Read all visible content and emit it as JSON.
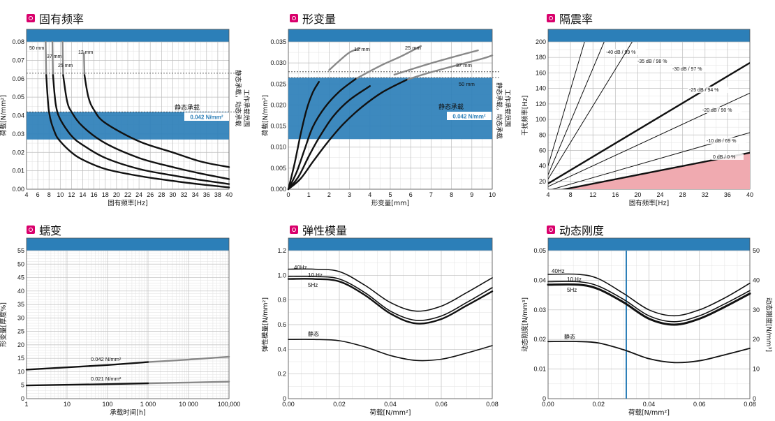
{
  "colors": {
    "band": "#2c7fb8",
    "accent": "#d9006c",
    "iso": "#f0aab0",
    "curve": "#111111",
    "faded": "#888888"
  },
  "chart_data": [
    {
      "id": "natfreq",
      "type": "line",
      "title": "固有频率",
      "xlabel": "固有频率[Hz]",
      "ylabel": "荷载[N/mm²]",
      "xlim": [
        4,
        40
      ],
      "ylim": [
        0,
        0.08
      ],
      "xticks": [
        4,
        6,
        8,
        10,
        12,
        14,
        16,
        18,
        20,
        22,
        24,
        26,
        28,
        30,
        32,
        34,
        36,
        38,
        40
      ],
      "yticks": [
        0,
        0.01,
        0.02,
        0.03,
        0.04,
        0.05,
        0.06,
        0.07,
        0.08
      ],
      "ytick_labels": [
        "0.00",
        "0.01",
        "0.02",
        "0.03",
        "0.04",
        "0.05",
        "0.06",
        "0.07",
        "0.08"
      ],
      "band": [
        0.027,
        0.042
      ],
      "band_right_label": "工作承载范围",
      "static_load_label": "静态承载",
      "static_load_value": "0.042 N/mm²",
      "dynamic_load_label": "静态承载，动态承载",
      "dynamic_load_level": 0.063,
      "series": [
        {
          "name": "50 mm",
          "points": [
            [
              7.4,
              0.08
            ],
            [
              7.5,
              0.062
            ],
            [
              8,
              0.042
            ],
            [
              9,
              0.031
            ],
            [
              10,
              0.026
            ],
            [
              12,
              0.02
            ],
            [
              14,
              0.016
            ],
            [
              18,
              0.011
            ],
            [
              24,
              0.0072
            ],
            [
              30,
              0.0045
            ],
            [
              35,
              0.0026
            ],
            [
              40,
              0.001
            ]
          ]
        },
        {
          "name": "37 mm",
          "points": [
            [
              8.6,
              0.08
            ],
            [
              8.7,
              0.062
            ],
            [
              9.2,
              0.046
            ],
            [
              10,
              0.038
            ],
            [
              12,
              0.029
            ],
            [
              14,
              0.024
            ],
            [
              18,
              0.017
            ],
            [
              24,
              0.011
            ],
            [
              30,
              0.0075
            ],
            [
              35,
              0.005
            ],
            [
              40,
              0.0028
            ]
          ]
        },
        {
          "name": "25 mm",
          "points": [
            [
              10.4,
              0.08
            ],
            [
              10.5,
              0.062
            ],
            [
              11.2,
              0.048
            ],
            [
              12,
              0.042
            ],
            [
              14,
              0.034
            ],
            [
              18,
              0.025
            ],
            [
              24,
              0.017
            ],
            [
              30,
              0.012
            ],
            [
              35,
              0.0085
            ],
            [
              40,
              0.0055
            ]
          ]
        },
        {
          "name": "12 mm",
          "points": [
            [
              14.2,
              0.074
            ],
            [
              14.3,
              0.062
            ],
            [
              15,
              0.05
            ],
            [
              16,
              0.043
            ],
            [
              18,
              0.036
            ],
            [
              24,
              0.026
            ],
            [
              30,
              0.02
            ],
            [
              35,
              0.015
            ],
            [
              40,
              0.012
            ]
          ]
        }
      ]
    },
    {
      "id": "deform",
      "type": "line",
      "title": "形变量",
      "xlabel": "形变量[mm]",
      "ylabel": "荷载[N/mm²]",
      "xlim": [
        0,
        10
      ],
      "ylim": [
        0,
        0.035
      ],
      "xticks": [
        0,
        1,
        2,
        3,
        4,
        5,
        6,
        7,
        8,
        9,
        10
      ],
      "yticks": [
        0,
        0.005,
        0.01,
        0.015,
        0.02,
        0.025,
        0.03,
        0.035
      ],
      "ytick_labels": [
        "0.000",
        "0.005",
        "0.010",
        "0.015",
        "0.020",
        "0.025",
        "0.030",
        "0.035"
      ],
      "band": [
        0.0119,
        0.0265
      ],
      "band_right_label": "工作承载范围",
      "static_load_label": "静态承载",
      "static_load_value": "0.042 N/mm²",
      "dynamic_load_label": "静态承载，动态承载",
      "dynamic_load_level": 0.0279,
      "series": [
        {
          "name": "12 mm",
          "points": [
            [
              0,
              0
            ],
            [
              0.3,
              0.006
            ],
            [
              0.6,
              0.013
            ],
            [
              0.9,
              0.019
            ],
            [
              1.2,
              0.023
            ],
            [
              1.5,
              0.0255
            ],
            [
              2,
              0.0283
            ],
            [
              2.5,
              0.0305
            ],
            [
              3,
              0.0325
            ],
            [
              3.5,
              0.0335
            ]
          ]
        },
        {
          "name": "25 mm",
          "points": [
            [
              0,
              0
            ],
            [
              0.4,
              0.004
            ],
            [
              0.8,
              0.0095
            ],
            [
              1.2,
              0.0148
            ],
            [
              1.8,
              0.0195
            ],
            [
              2.5,
              0.0232
            ],
            [
              3.3,
              0.0262
            ],
            [
              4.5,
              0.0293
            ],
            [
              5.5,
              0.0315
            ],
            [
              6.5,
              0.034
            ]
          ]
        },
        {
          "name": "37 mm",
          "points": [
            [
              0,
              0
            ],
            [
              0.5,
              0.003
            ],
            [
              1,
              0.0078
            ],
            [
              1.5,
              0.0122
            ],
            [
              2.2,
              0.0173
            ],
            [
              3,
              0.0212
            ],
            [
              4,
              0.0245
            ],
            [
              5.2,
              0.0272
            ],
            [
              6.5,
              0.0292
            ],
            [
              8,
              0.0313
            ],
            [
              9.3,
              0.033
            ]
          ]
        },
        {
          "name": "50 mm",
          "points": [
            [
              0,
              0
            ],
            [
              0.6,
              0.0025
            ],
            [
              1.2,
              0.0065
            ],
            [
              1.9,
              0.011
            ],
            [
              2.7,
              0.0155
            ],
            [
              3.6,
              0.0195
            ],
            [
              4.6,
              0.023
            ],
            [
              5.8,
              0.026
            ],
            [
              7,
              0.0278
            ],
            [
              8.3,
              0.0295
            ],
            [
              9.5,
              0.031
            ],
            [
              10,
              0.0318
            ]
          ]
        }
      ]
    },
    {
      "id": "isolation",
      "type": "line",
      "title": "隔震率",
      "xlabel": "固有频率[Hz]",
      "ylabel": "干扰频率[Hz]",
      "xlim": [
        4,
        40
      ],
      "ylim": [
        10,
        200
      ],
      "xticks": [
        4,
        8,
        12,
        16,
        20,
        24,
        28,
        32,
        36,
        40
      ],
      "yticks": [
        20,
        40,
        60,
        80,
        100,
        120,
        140,
        160,
        180,
        200
      ],
      "series": [
        {
          "name": "-40 dB / 99 %",
          "points": [
            [
              4,
              40.2
            ],
            [
              10.5,
              200
            ]
          ]
        },
        {
          "name": "-35 dB / 98 %",
          "points": [
            [
              4,
              28.6
            ],
            [
              14,
              200
            ]
          ]
        },
        {
          "name": "-30 dB / 97 %",
          "points": [
            [
              4,
              23.1
            ],
            [
              19,
              200
            ]
          ]
        },
        {
          "name": "-25 dB / 94 %",
          "points": [
            [
              4,
              17.3
            ],
            [
              40,
              173
            ]
          ]
        },
        {
          "name": "-20 dB / 90 %",
          "points": [
            [
              4,
              13.4
            ],
            [
              40,
              134
            ]
          ]
        },
        {
          "name": "-10 dB / 69 %",
          "points": [
            [
              4,
              8.3
            ],
            [
              40,
              83
            ]
          ]
        },
        {
          "name": "0 dB / 0 %",
          "points": [
            [
              4,
              5.7
            ],
            [
              40,
              57
            ]
          ]
        }
      ]
    },
    {
      "id": "creep",
      "type": "line",
      "title": "蠕变",
      "xlabel": "承载时间[h]",
      "ylabel": "形变量[厚度%]",
      "xscale": "log",
      "xlim": [
        1,
        100000
      ],
      "ylim": [
        0,
        55
      ],
      "xticks": [
        1,
        10,
        100,
        1000,
        10000,
        100000
      ],
      "xtick_labels": [
        "1",
        "10",
        "100",
        "1 000",
        "10 000",
        "100,000"
      ],
      "yticks": [
        0,
        5,
        10,
        15,
        20,
        25,
        30,
        35,
        40,
        45,
        50,
        55
      ],
      "series": [
        {
          "name": "0.042 N/mm²",
          "points": [
            [
              1,
              10.8
            ],
            [
              100,
              12.5
            ],
            [
              1000,
              13.6
            ],
            [
              10000,
              14.5
            ],
            [
              100000,
              15.6
            ]
          ]
        },
        {
          "name": "0.021 N/mm²",
          "points": [
            [
              1,
              4.9
            ],
            [
              100,
              5.4
            ],
            [
              1000,
              5.7
            ],
            [
              10000,
              6
            ],
            [
              100000,
              6.3
            ]
          ]
        }
      ]
    },
    {
      "id": "modulus",
      "type": "line",
      "title": "弹性模量",
      "xlabel": "荷载[N/mm²]",
      "ylabel": "弹性模量[N/mm²]",
      "xlim": [
        0,
        0.08
      ],
      "ylim": [
        0,
        1.2
      ],
      "xticks": [
        0,
        0.02,
        0.04,
        0.06,
        0.08
      ],
      "xtick_labels": [
        "0.00",
        "0.02",
        "0.04",
        "0.06",
        "0.08"
      ],
      "yticks": [
        0,
        0.2,
        0.4,
        0.6,
        0.8,
        1.0,
        1.2
      ],
      "ytick_labels": [
        "0",
        "0.2",
        "0.4",
        "0.6",
        "0.8",
        "1.0",
        "1.2"
      ],
      "series": [
        {
          "name": "40Hz",
          "points": [
            [
              0,
              1.05
            ],
            [
              0.01,
              1.05
            ],
            [
              0.02,
              1.03
            ],
            [
              0.03,
              0.92
            ],
            [
              0.04,
              0.78
            ],
            [
              0.05,
              0.71
            ],
            [
              0.06,
              0.75
            ],
            [
              0.07,
              0.86
            ],
            [
              0.08,
              0.98
            ]
          ]
        },
        {
          "name": "10 Hz",
          "points": [
            [
              0,
              0.99
            ],
            [
              0.01,
              0.99
            ],
            [
              0.02,
              0.97
            ],
            [
              0.03,
              0.86
            ],
            [
              0.04,
              0.71
            ],
            [
              0.05,
              0.635
            ],
            [
              0.06,
              0.67
            ],
            [
              0.07,
              0.78
            ],
            [
              0.08,
              0.9
            ]
          ]
        },
        {
          "name": "5Hz",
          "points": [
            [
              0,
              0.97
            ],
            [
              0.01,
              0.97
            ],
            [
              0.02,
              0.95
            ],
            [
              0.03,
              0.84
            ],
            [
              0.04,
              0.69
            ],
            [
              0.05,
              0.61
            ],
            [
              0.06,
              0.645
            ],
            [
              0.07,
              0.755
            ],
            [
              0.08,
              0.87
            ]
          ]
        },
        {
          "name": "静态",
          "points": [
            [
              0,
              0.48
            ],
            [
              0.01,
              0.48
            ],
            [
              0.02,
              0.47
            ],
            [
              0.03,
              0.42
            ],
            [
              0.04,
              0.35
            ],
            [
              0.05,
              0.31
            ],
            [
              0.06,
              0.32
            ],
            [
              0.07,
              0.37
            ],
            [
              0.08,
              0.43
            ]
          ]
        }
      ]
    },
    {
      "id": "dynstiff",
      "type": "line",
      "title": "动态刚度",
      "xlabel": "荷载[N/mm²]",
      "ylabel": "动态刚度[N/mm³]",
      "y2label": "动态刚度[N/mm³]",
      "xlim": [
        0,
        0.08
      ],
      "ylim": [
        0,
        0.05
      ],
      "y2lim": [
        0,
        50
      ],
      "xticks": [
        0,
        0.02,
        0.04,
        0.06,
        0.08
      ],
      "xtick_labels": [
        "0.00",
        "0.02",
        "0.04",
        "0.06",
        "0.08"
      ],
      "yticks": [
        0,
        0.01,
        0.02,
        0.03,
        0.04,
        0.05
      ],
      "ytick_labels": [
        "0",
        "0.01",
        "0.02",
        "0.03",
        "0.04",
        "0.05"
      ],
      "y2ticks": [
        0,
        10,
        20,
        30,
        40,
        50
      ],
      "vline": 0.031,
      "series": [
        {
          "name": "40Hz",
          "points": [
            [
              0,
              0.042
            ],
            [
              0.012,
              0.042
            ],
            [
              0.02,
              0.0405
            ],
            [
              0.03,
              0.0355
            ],
            [
              0.04,
              0.03
            ],
            [
              0.05,
              0.028
            ],
            [
              0.06,
              0.03
            ],
            [
              0.07,
              0.034
            ],
            [
              0.08,
              0.039
            ]
          ]
        },
        {
          "name": "10 Hz",
          "points": [
            [
              0,
              0.0395
            ],
            [
              0.012,
              0.0395
            ],
            [
              0.02,
              0.038
            ],
            [
              0.03,
              0.0335
            ],
            [
              0.04,
              0.028
            ],
            [
              0.05,
              0.026
            ],
            [
              0.06,
              0.028
            ],
            [
              0.07,
              0.032
            ],
            [
              0.08,
              0.0365
            ]
          ]
        },
        {
          "name": "5Hz",
          "points": [
            [
              0,
              0.0385
            ],
            [
              0.012,
              0.0385
            ],
            [
              0.02,
              0.037
            ],
            [
              0.03,
              0.0325
            ],
            [
              0.04,
              0.027
            ],
            [
              0.05,
              0.025
            ],
            [
              0.06,
              0.027
            ],
            [
              0.07,
              0.031
            ],
            [
              0.08,
              0.0355
            ]
          ]
        },
        {
          "name": "静态",
          "points": [
            [
              0,
              0.0193
            ],
            [
              0.012,
              0.0193
            ],
            [
              0.02,
              0.0188
            ],
            [
              0.03,
              0.0165
            ],
            [
              0.04,
              0.0135
            ],
            [
              0.05,
              0.0122
            ],
            [
              0.06,
              0.0128
            ],
            [
              0.07,
              0.0148
            ],
            [
              0.08,
              0.017
            ]
          ]
        }
      ]
    }
  ]
}
